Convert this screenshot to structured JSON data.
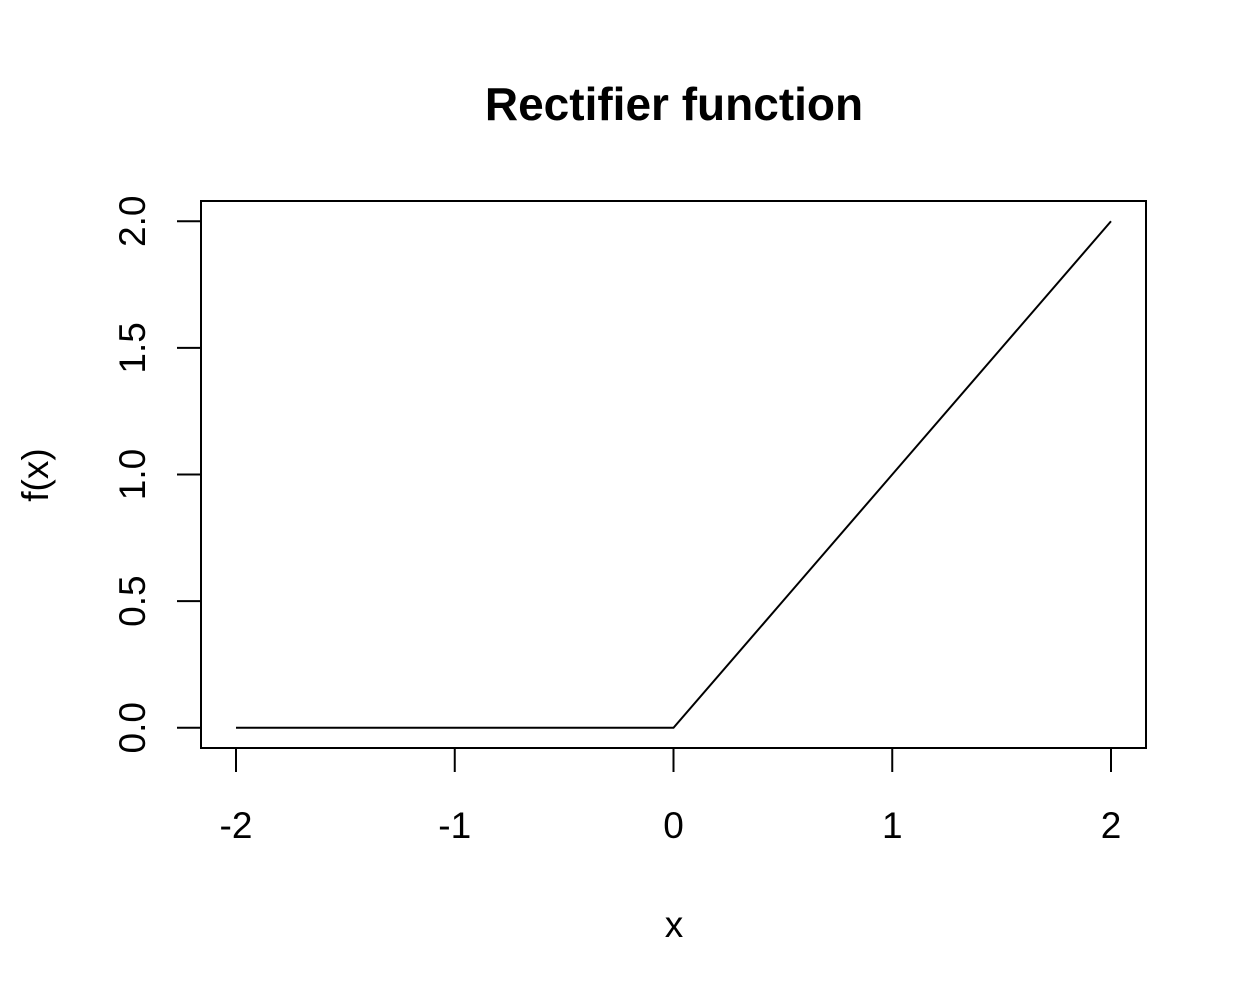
{
  "chart_data": {
    "type": "line",
    "title": "Rectifier function",
    "xlabel": "x",
    "ylabel": "f(x)",
    "xlim": [
      -2.16,
      2.16
    ],
    "ylim": [
      -0.08,
      2.08
    ],
    "x_ticks": [
      -2,
      -1,
      0,
      1,
      2
    ],
    "x_tick_labels": [
      "-2",
      "-1",
      "0",
      "1",
      "2"
    ],
    "y_ticks": [
      0,
      0.5,
      1,
      1.5,
      2
    ],
    "y_tick_labels": [
      "0.0",
      "0.5",
      "1.0",
      "1.5",
      "2.0"
    ],
    "grid": false,
    "legend": "none",
    "line_color": "#000000",
    "series": [
      {
        "x": [
          -2,
          -1,
          0,
          0.5,
          1,
          1.5,
          2
        ],
        "y": [
          0,
          0,
          0,
          0.5,
          1,
          1.5,
          2
        ]
      }
    ]
  }
}
